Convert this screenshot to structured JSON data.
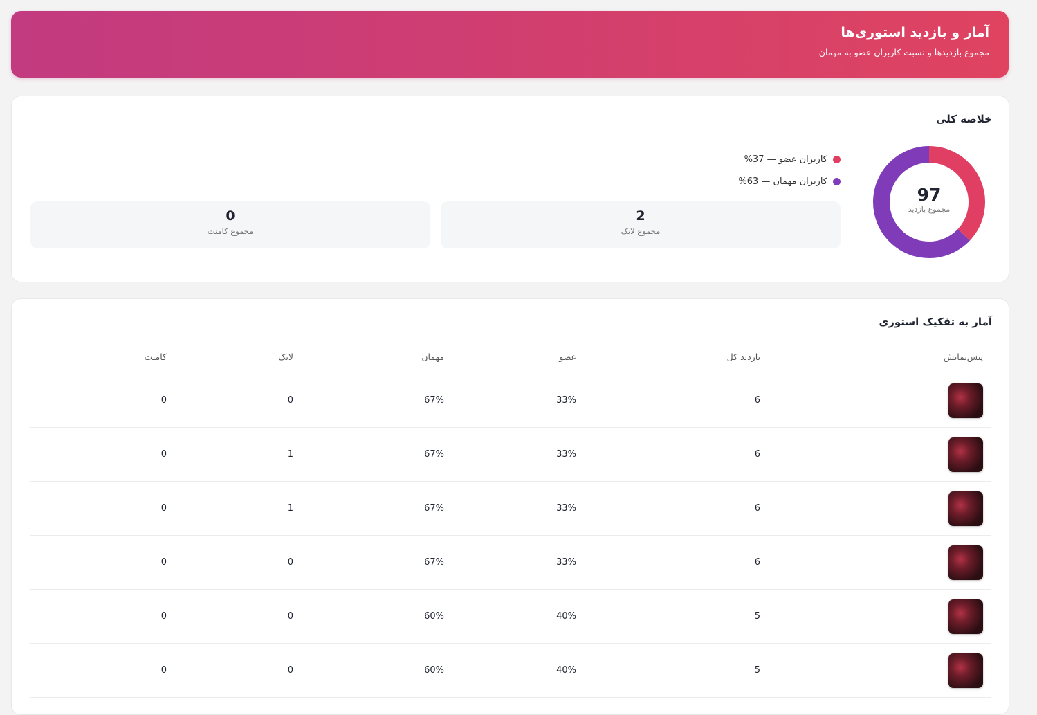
{
  "header": {
    "title": "آمار و بازدید استوری‌ها",
    "subtitle": "مجموع بازدیدها و نسبت کاربران عضو به مهمان"
  },
  "summary": {
    "title": "خلاصه کلی",
    "donut": {
      "total": 97,
      "total_label": "مجموع بازدید",
      "segments": [
        {
          "label": "کاربران عضو — 37%",
          "value": 37,
          "color": "#e03e62"
        },
        {
          "label": "کاربران مهمان — 63%",
          "value": 63,
          "color": "#7f3bb8"
        }
      ]
    },
    "stats": [
      {
        "value": 2,
        "label": "مجموع لایک"
      },
      {
        "value": 0,
        "label": "مجموع کامنت"
      }
    ]
  },
  "table": {
    "title": "آمار به تفکیک استوری",
    "headers": [
      "پیش‌نمایش",
      "بازدید کل",
      "عضو",
      "مهمان",
      "لایک",
      "کامنت"
    ],
    "rows": [
      [
        6,
        "33%",
        "67%",
        0,
        0
      ],
      [
        6,
        "33%",
        "67%",
        1,
        0
      ],
      [
        6,
        "33%",
        "67%",
        1,
        0
      ],
      [
        6,
        "33%",
        "67%",
        0,
        0
      ],
      [
        5,
        "40%",
        "60%",
        0,
        0
      ],
      [
        5,
        "40%",
        "60%",
        0,
        0
      ]
    ]
  }
}
